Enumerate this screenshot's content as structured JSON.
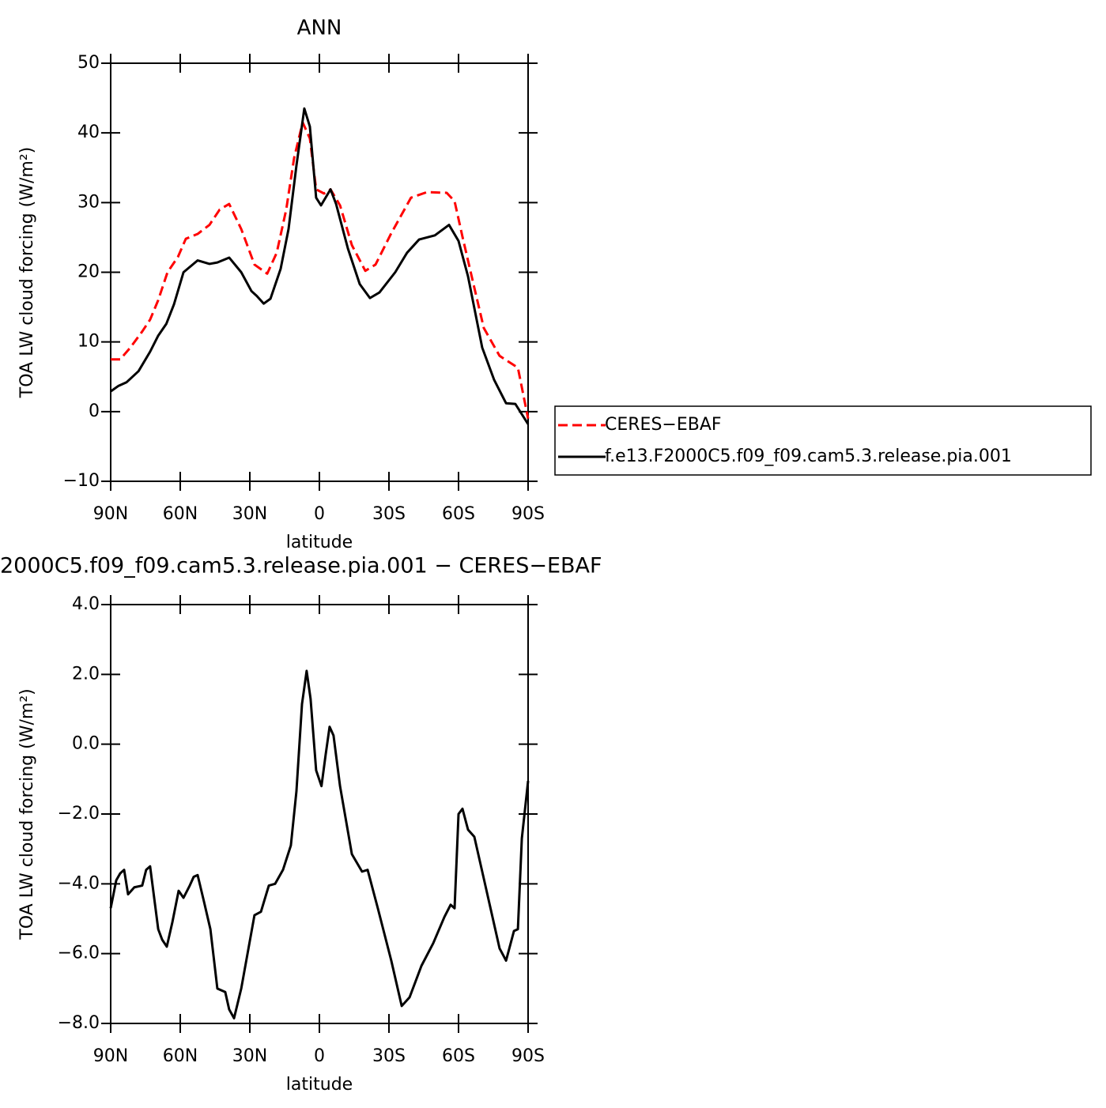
{
  "chart_data": [
    {
      "type": "line",
      "title": "ANN",
      "xlabel": "latitude",
      "ylabel": "TOA LW cloud forcing (W/m²)",
      "xlim": [
        90,
        -90
      ],
      "xticks": [
        {
          "value": 90,
          "label": "90N"
        },
        {
          "value": 60,
          "label": "60N"
        },
        {
          "value": 30,
          "label": "30N"
        },
        0,
        {
          "value": -30,
          "label": "30S"
        },
        {
          "value": -60,
          "label": "60S"
        },
        {
          "value": -90,
          "label": "90S"
        }
      ],
      "ylim": [
        -10,
        50
      ],
      "yticks": [
        {
          "value": -10,
          "label": "−10"
        },
        0,
        10,
        20,
        30,
        40,
        50
      ],
      "legend": "right",
      "series": [
        {
          "name": "CERES−EBAF",
          "color": "#ff0000",
          "linestyle": "dashed",
          "x": [
            90,
            85.9,
            81.5,
            76.4,
            73,
            69.5,
            65.5,
            61,
            57.6,
            52.5,
            47.4,
            43,
            38.9,
            33.7,
            28,
            22.5,
            18.4,
            14.3,
            10.9,
            7.2,
            4.1,
            1.4,
            -2.0,
            -4.8,
            -8.9,
            -14,
            -19.8,
            -24.2,
            -31,
            -39.5,
            -46.4,
            -54.9,
            -58.3,
            -61.7,
            -66.1,
            -70.9,
            -77.7,
            -85.6,
            -90
          ],
          "values": [
            7.5,
            7.5,
            9.2,
            11.5,
            13.2,
            16,
            20,
            22.2,
            24.8,
            25.5,
            26.8,
            29,
            29.8,
            26.2,
            21.1,
            19.8,
            22.8,
            29,
            36.4,
            41.5,
            39.2,
            31.9,
            31.3,
            31.9,
            29.6,
            23.9,
            20.2,
            21.1,
            25.6,
            30.7,
            31.5,
            31.4,
            30.2,
            25.1,
            18.8,
            12,
            8,
            6.3,
            -1
          ]
        },
        {
          "name": "f.e13.F2000C5.f09_f09.cam5.3.release.pia.001",
          "color": "#000000",
          "linestyle": "solid",
          "x": [
            90,
            86.6,
            83.2,
            78,
            73,
            69.5,
            66,
            62.7,
            58.6,
            52.5,
            47.4,
            44,
            38.9,
            33.7,
            29.3,
            27,
            24,
            21.1,
            16.7,
            13.3,
            9.9,
            6.5,
            4.1,
            1.4,
            -0.7,
            -4.8,
            -7.2,
            -12.3,
            -17.4,
            -21.8,
            -25.9,
            -32.7,
            -37.8,
            -43,
            -49.8,
            -55.9,
            -60,
            -64.1,
            -70.2,
            -75.3,
            -80.5,
            -84.5,
            -90
          ],
          "values": [
            2.9,
            3.7,
            4.2,
            5.8,
            8.6,
            10.9,
            12.6,
            15.4,
            20,
            21.7,
            21.2,
            21.4,
            22.1,
            20,
            17.3,
            16.6,
            15.5,
            16.2,
            20.5,
            26.2,
            35.3,
            43.5,
            40.9,
            30.7,
            29.6,
            31.9,
            29.8,
            23.4,
            18.3,
            16.3,
            17.1,
            20,
            22.8,
            24.7,
            25.3,
            26.8,
            24.5,
            19.4,
            9.2,
            4.6,
            1.2,
            1.1,
            -1.8
          ]
        }
      ]
    },
    {
      "type": "line",
      "title": "2000C5.f09_f09.cam5.3.release.pia.001 − CERES−EBAF",
      "xlabel": "latitude",
      "ylabel": "TOA LW cloud forcing (W/m²)",
      "xlim": [
        90,
        -90
      ],
      "xticks": [
        {
          "value": 90,
          "label": "90N"
        },
        {
          "value": 60,
          "label": "60N"
        },
        {
          "value": 30,
          "label": "30N"
        },
        0,
        {
          "value": -30,
          "label": "30S"
        },
        {
          "value": -60,
          "label": "60S"
        },
        {
          "value": -90,
          "label": "90S"
        }
      ],
      "ylim": [
        -8,
        4
      ],
      "yticks": [
        {
          "value": -8,
          "label": "−8.0"
        },
        {
          "value": -6,
          "label": "−6.0"
        },
        {
          "value": -4,
          "label": "−4.0"
        },
        {
          "value": -2,
          "label": "−2.0"
        },
        {
          "value": 0,
          "label": "0.0"
        },
        {
          "value": 2,
          "label": "2.0"
        },
        {
          "value": 4,
          "label": "4.0"
        }
      ],
      "series": [
        {
          "color": "#000000",
          "linestyle": "solid",
          "x": [
            90,
            87.6,
            85.9,
            84.2,
            82.5,
            79.8,
            76.4,
            74.7,
            73,
            69.5,
            67.8,
            65.8,
            63.4,
            60.7,
            58.6,
            55.9,
            54.2,
            52.5,
            49.8,
            47,
            44,
            40.6,
            38.9,
            36.8,
            33.7,
            28,
            25.2,
            21.8,
            19.1,
            15.7,
            12.3,
            9.9,
            7.5,
            5.5,
            3.8,
            1.4,
            -0.9,
            -2.7,
            -4.4,
            -6.1,
            -8.9,
            -14,
            -18.4,
            -20.8,
            -25.2,
            -31,
            -35.5,
            -38.9,
            -44,
            -49.1,
            -53.9,
            -56.6,
            -58.3,
            -60,
            -61.7,
            -64.1,
            -66.8,
            -70.9,
            -74.3,
            -77.7,
            -80.5,
            -83.9,
            -85.6,
            -87.3,
            -90
          ],
          "values": [
            -4.7,
            -3.9,
            -3.7,
            -3.6,
            -4.3,
            -4.1,
            -4.05,
            -3.6,
            -3.5,
            -5.3,
            -5.6,
            -5.8,
            -5.1,
            -4.2,
            -4.4,
            -4.05,
            -3.8,
            -3.75,
            -4.5,
            -5.3,
            -7.0,
            -7.1,
            -7.6,
            -7.85,
            -7.0,
            -4.9,
            -4.8,
            -4.05,
            -4.0,
            -3.6,
            -2.9,
            -1.35,
            1.15,
            2.1,
            1.3,
            -0.75,
            -1.2,
            -0.3,
            0.5,
            0.25,
            -1.2,
            -3.15,
            -3.65,
            -3.6,
            -4.7,
            -6.2,
            -7.5,
            -7.25,
            -6.35,
            -5.7,
            -4.95,
            -4.6,
            -4.7,
            -2.0,
            -1.85,
            -2.45,
            -2.65,
            -3.85,
            -4.85,
            -5.85,
            -6.2,
            -5.35,
            -5.3,
            -2.7,
            -1.05
          ]
        }
      ]
    }
  ]
}
